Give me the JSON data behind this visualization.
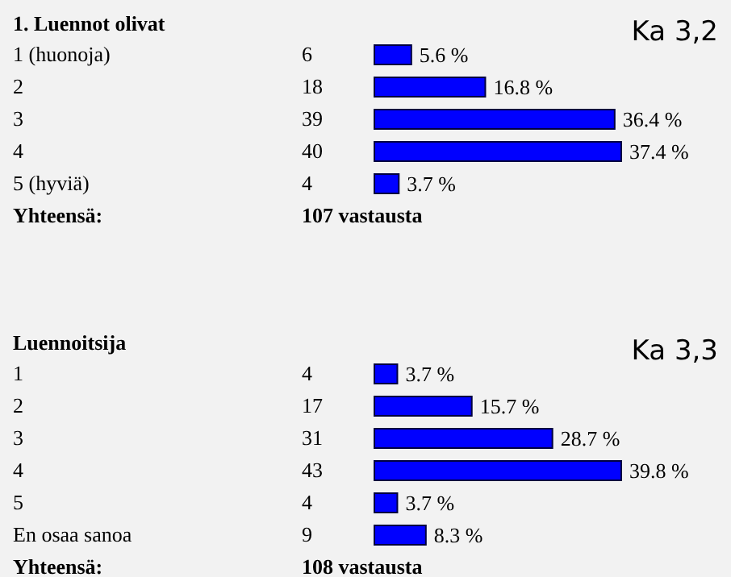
{
  "chart_data": [
    {
      "type": "bar",
      "orientation": "horizontal",
      "title": "1. Luennot olivat",
      "categories": [
        "1 (huonoja)",
        "2",
        "3",
        "4",
        "5 (hyviä)"
      ],
      "values": [
        5.6,
        16.8,
        36.4,
        37.4,
        3.7
      ],
      "color": "#0000ff",
      "value_labels": [
        "5.6 %",
        "16.8 %",
        "36.4 %",
        "37.4 %",
        "3.7 %"
      ],
      "tick_labels": "y",
      "annotations": [
        "Ka 3,2",
        "Yhteensä:",
        "107 vastausta",
        "6",
        "18",
        "39",
        "40",
        "4"
      ]
    },
    {
      "type": "bar",
      "orientation": "horizontal",
      "title": "Luennoitsija",
      "categories": [
        "1",
        "2",
        "3",
        "4",
        "5",
        "En osaa sanoa"
      ],
      "values": [
        3.7,
        15.7,
        28.7,
        39.8,
        3.7,
        8.3
      ],
      "color": "#0000ff",
      "value_labels": [
        "3.7 %",
        "15.7 %",
        "28.7 %",
        "39.8 %",
        "3.7 %",
        "8.3 %"
      ],
      "tick_labels": "y",
      "annotations": [
        "Ka 3,3",
        "Yhteensä:",
        "108 vastausta",
        "4",
        "17",
        "31",
        "43",
        "4",
        "9"
      ]
    }
  ]
}
